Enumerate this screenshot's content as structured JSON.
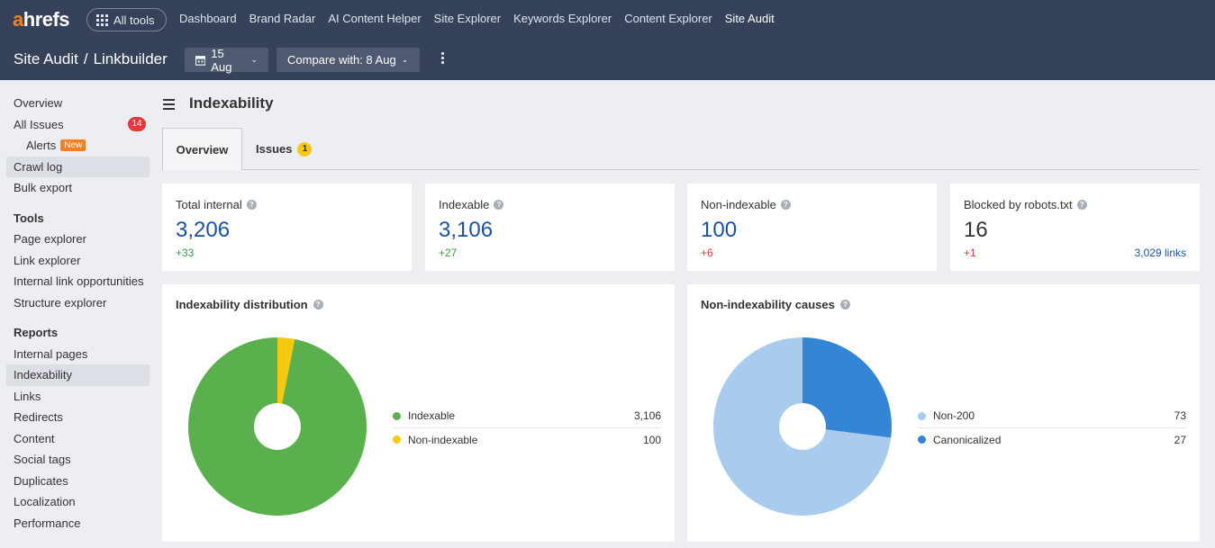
{
  "app": {
    "logo_a": "a",
    "logo_rest": "hrefs",
    "all_tools": "All tools",
    "nav": [
      "Dashboard",
      "Brand Radar",
      "AI Content Helper",
      "Site Explorer",
      "Keywords Explorer",
      "Content Explorer",
      "Site Audit"
    ],
    "active_nav": "Site Audit"
  },
  "breadcrumb": {
    "section": "Site Audit",
    "separator": "/",
    "project": "Linkbuilder"
  },
  "toolbar": {
    "date": "15 Aug",
    "compare": "Compare with: 8 Aug"
  },
  "sidebar": {
    "overview": "Overview",
    "all_issues": "All Issues",
    "all_issues_count": "14",
    "alerts": "Alerts",
    "alerts_badge": "New",
    "crawl_log": "Crawl log",
    "bulk_export": "Bulk export",
    "tools_heading": "Tools",
    "tools": [
      "Page explorer",
      "Link explorer",
      "Internal link opportunities",
      "Structure explorer"
    ],
    "reports_heading": "Reports",
    "reports": [
      "Internal pages",
      "Indexability",
      "Links",
      "Redirects",
      "Content",
      "Social tags",
      "Duplicates",
      "Localization",
      "Performance"
    ]
  },
  "page": {
    "title": "Indexability",
    "tabs": {
      "overview": "Overview",
      "issues": "Issues",
      "issues_count": "1"
    }
  },
  "stats": [
    {
      "label": "Total internal",
      "value": "3,206",
      "delta": "+33"
    },
    {
      "label": "Indexable",
      "value": "3,106",
      "delta": "+27"
    },
    {
      "label": "Non-indexable",
      "value": "100",
      "delta": "+6"
    },
    {
      "label": "Blocked by robots.txt",
      "value": "16",
      "delta": "+1",
      "link": "3,029 links"
    }
  ],
  "chart_data": [
    {
      "type": "pie",
      "title": "Indexability distribution",
      "categories": [
        "Indexable",
        "Non-indexable"
      ],
      "values": [
        3106,
        100
      ],
      "value_labels": [
        "3,106",
        "100"
      ],
      "colors": [
        "#5ab04c",
        "#f6c90e"
      ]
    },
    {
      "type": "pie",
      "title": "Non-indexability causes",
      "categories": [
        "Non-200",
        "Canonicalized"
      ],
      "values": [
        73,
        27
      ],
      "value_labels": [
        "73",
        "27"
      ],
      "colors": [
        "#a8cbee",
        "#3386d6"
      ]
    }
  ]
}
